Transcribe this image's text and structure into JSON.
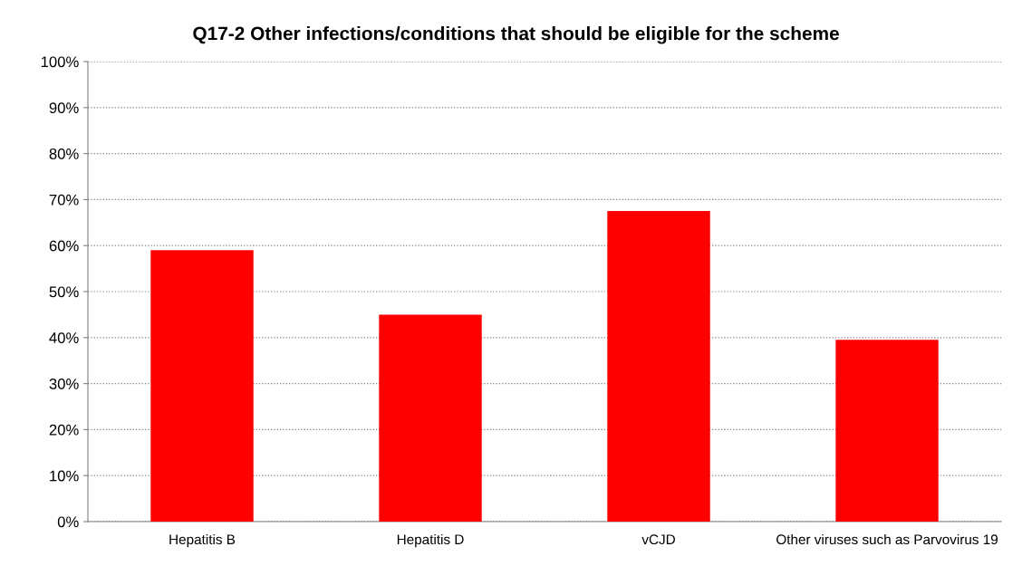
{
  "chart_data": {
    "type": "bar",
    "title": "Q17-2 Other infections/conditions that should be eligible for the scheme",
    "categories": [
      "Hepatitis B",
      "Hepatitis D",
      "vCJD",
      "Other viruses such as Parvovirus 19"
    ],
    "values": [
      59,
      45,
      67.5,
      39.5
    ],
    "color": "#ff0000",
    "ylim": [
      0,
      100
    ],
    "yticks": [
      {
        "value": 0,
        "label": "0%"
      },
      {
        "value": 10,
        "label": "10%"
      },
      {
        "value": 20,
        "label": "20%"
      },
      {
        "value": 30,
        "label": "30%"
      },
      {
        "value": 40,
        "label": "40%"
      },
      {
        "value": 50,
        "label": "50%"
      },
      {
        "value": 60,
        "label": "60%"
      },
      {
        "value": 70,
        "label": "70%"
      },
      {
        "value": 80,
        "label": "80%"
      },
      {
        "value": 90,
        "label": "90%"
      },
      {
        "value": 100,
        "label": "100%"
      }
    ],
    "grid": "y",
    "legend": false
  }
}
